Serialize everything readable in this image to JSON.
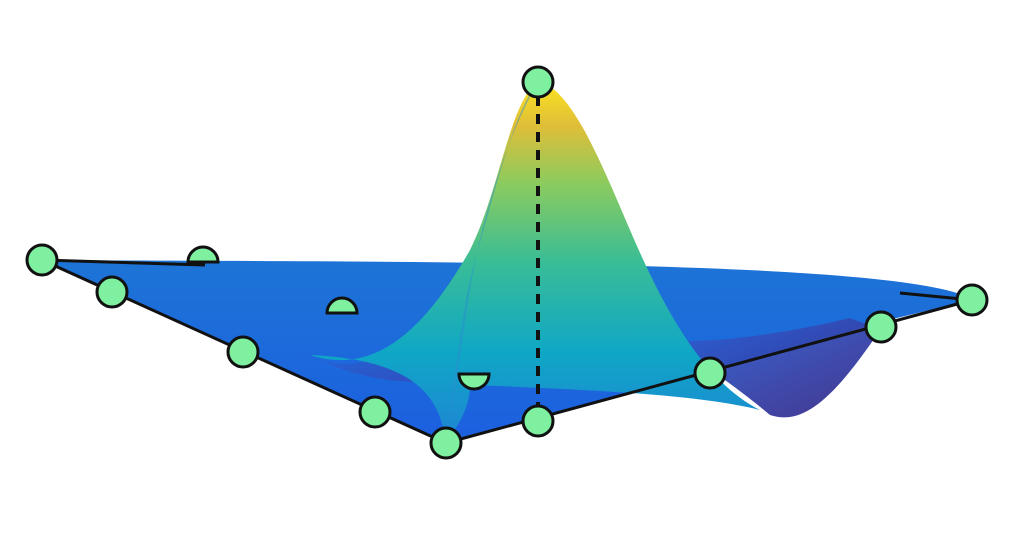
{
  "figure": {
    "kind": "3d-surface-finite-element-shape-function",
    "colormap": [
      "#3b2a87",
      "#1d4fd8",
      "#1f83d4",
      "#0fa7c6",
      "#39bd96",
      "#8ccb5e",
      "#e0be38",
      "#fbe51f"
    ],
    "node_fill": "#7ef0a0",
    "node_stroke": "#111111",
    "edge_color": "#111111",
    "peak_marker": "dashed-vertical-line"
  }
}
